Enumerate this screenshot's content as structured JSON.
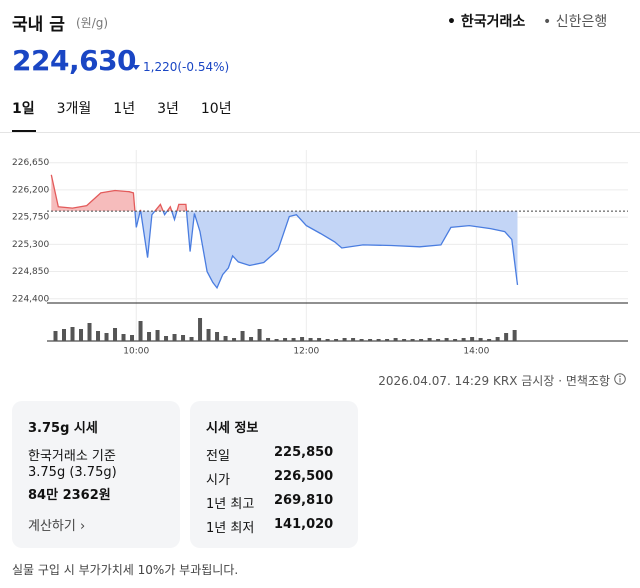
{
  "header": {
    "title": "국내 금",
    "unit": "(원/g)",
    "sources": [
      "한국거래소",
      "신한은행"
    ]
  },
  "price": {
    "current": "224,630",
    "change": "1,220",
    "change_pct": "(-0.54%)"
  },
  "period_tabs": [
    "1일",
    "3개월",
    "1년",
    "3년",
    "10년"
  ],
  "chart_data": {
    "type": "line",
    "baseline": 225850,
    "up_color": "#e35b5b",
    "down_color": "#4a7de0",
    "up_fill": "#f6bcbc",
    "down_fill": "#c3d5f6",
    "xlim": [
      537,
      947
    ],
    "ylim": [
      224330,
      226860
    ],
    "y2lim": [
      0,
      30
    ],
    "grid": true,
    "xticks": [
      {
        "value": 600,
        "label": "10:00"
      },
      {
        "value": 720,
        "label": "12:00"
      },
      {
        "value": 840,
        "label": "14:00"
      }
    ],
    "yticks": [
      {
        "value": 226650,
        "label": "226,650"
      },
      {
        "value": 226200,
        "label": "226,200"
      },
      {
        "value": 225750,
        "label": "225,750"
      },
      {
        "value": 225300,
        "label": "225,300"
      },
      {
        "value": 224850,
        "label": "224,850"
      },
      {
        "value": 224400,
        "label": "224,400"
      }
    ],
    "series": [
      {
        "type": "line",
        "x": [
          540,
          545,
          555,
          565,
          575,
          585,
          595,
          598,
          600,
          603,
          608,
          611,
          617,
          620,
          624,
          627,
          630,
          635,
          638,
          641,
          645,
          650,
          654,
          657,
          661,
          665,
          668,
          672,
          680,
          690,
          700,
          708,
          713,
          720,
          730,
          740,
          745,
          760,
          780,
          800,
          815,
          822,
          835,
          850,
          860,
          865,
          869
        ],
        "values": [
          226450,
          225920,
          225900,
          225940,
          226150,
          226190,
          226170,
          226150,
          225580,
          225870,
          225080,
          225790,
          225960,
          225790,
          225920,
          225710,
          225960,
          225960,
          225180,
          225810,
          225510,
          224850,
          224670,
          224580,
          224800,
          224910,
          225110,
          225010,
          224950,
          225000,
          225210,
          225760,
          225790,
          225610,
          225480,
          225340,
          225240,
          225290,
          225280,
          225260,
          225290,
          225580,
          225610,
          225560,
          225510,
          225380,
          224630
        ]
      },
      {
        "type": "bar",
        "axis": "y2",
        "color": "#555555",
        "x": [
          543,
          549,
          555,
          561,
          567,
          573,
          579,
          585,
          591,
          597,
          603,
          609,
          615,
          621,
          627,
          633,
          639,
          645,
          651,
          657,
          663,
          669,
          675,
          681,
          687,
          693,
          699,
          705,
          711,
          717,
          723,
          729,
          735,
          741,
          747,
          753,
          759,
          765,
          771,
          777,
          783,
          789,
          795,
          801,
          807,
          813,
          819,
          825,
          831,
          837,
          843,
          849,
          855,
          861,
          867
        ],
        "values": [
          10,
          12,
          14,
          12,
          18,
          10,
          8,
          13,
          7,
          6,
          20,
          9,
          11,
          5,
          7,
          6,
          4,
          23,
          12,
          9,
          5,
          3,
          10,
          4,
          12,
          3,
          2,
          3,
          3,
          4,
          3,
          3,
          2,
          2,
          3,
          3,
          2,
          2,
          2,
          2,
          3,
          2,
          2,
          2,
          3,
          2,
          3,
          2,
          3,
          4,
          3,
          2,
          4,
          8,
          11
        ]
      }
    ]
  },
  "timestamp": "2026.04.07. 14:29 KRX 금시장",
  "disclaimer": "면책조항",
  "card_gram": {
    "title": "3.75g 시세",
    "basis": "한국거래소 기준",
    "weight": "3.75g (3.75g)",
    "amount": "84만 2362원",
    "link": "계산하기"
  },
  "card_info": {
    "title": "시세 정보",
    "rows": [
      [
        "전일",
        "225,850"
      ],
      [
        "시가",
        "226,500"
      ],
      [
        "1년 최고",
        "269,810"
      ],
      [
        "1년 최저",
        "141,020"
      ]
    ]
  },
  "footer": "실물 구입 시 부가가치세 10%가 부과됩니다."
}
